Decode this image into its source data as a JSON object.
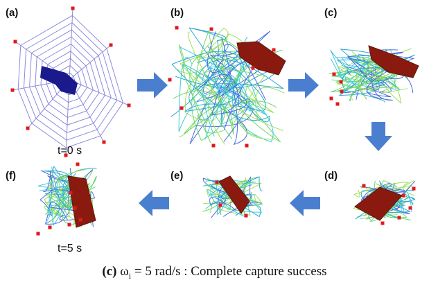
{
  "panels": [
    {
      "label": "(a)"
    },
    {
      "label": "(b)"
    },
    {
      "label": "(c)"
    },
    {
      "label": "(d)"
    },
    {
      "label": "(e)"
    },
    {
      "label": "(f)"
    }
  ],
  "times": {
    "start": "t=0 s",
    "end": "t=5 s"
  },
  "caption": {
    "label": "(c)",
    "symbol": "ω",
    "subscript": "i",
    "text": " = 5 rad/s : Complete capture success"
  }
}
